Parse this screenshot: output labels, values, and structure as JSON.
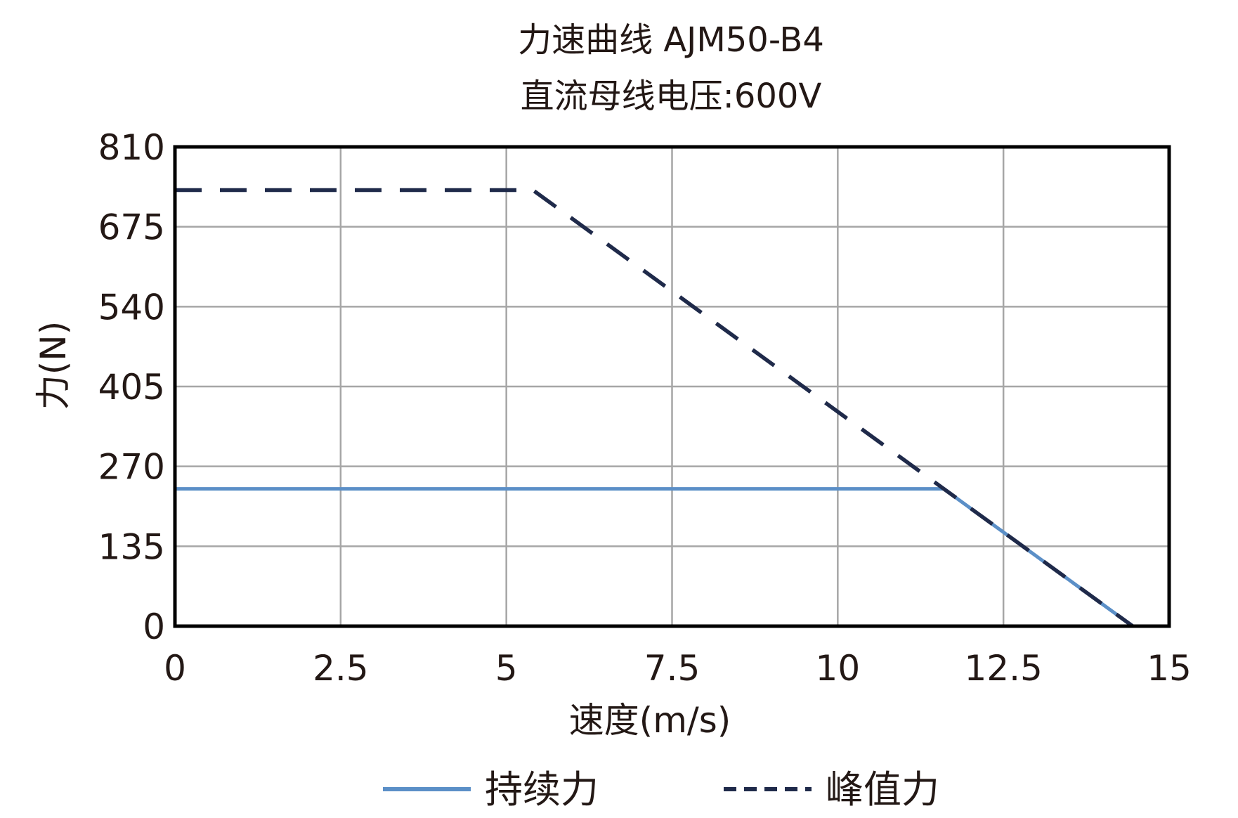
{
  "chart_data": {
    "type": "line",
    "title": "力速曲线 AJM50-B4",
    "subtitle": "直流母线电压:600V",
    "xlabel": "速度(m/s)",
    "ylabel": "力(N)",
    "xlim": [
      0,
      15
    ],
    "ylim": [
      0,
      810
    ],
    "xticks": [
      "0",
      "2.5",
      "5",
      "7.5",
      "10",
      "12.5",
      "15"
    ],
    "yticks": [
      "0",
      "135",
      "270",
      "405",
      "540",
      "675",
      "810"
    ],
    "grid": true,
    "legend_position": "bottom",
    "series": [
      {
        "name": "持续力",
        "style": "solid",
        "color": "#5b8fc7",
        "x": [
          0,
          11.6,
          14.45
        ],
        "y": [
          232,
          232,
          0
        ]
      },
      {
        "name": "峰值力",
        "style": "dashed",
        "color": "#1f2a4a",
        "x": [
          0,
          5.4,
          14.45
        ],
        "y": [
          737,
          737,
          0
        ]
      }
    ]
  }
}
